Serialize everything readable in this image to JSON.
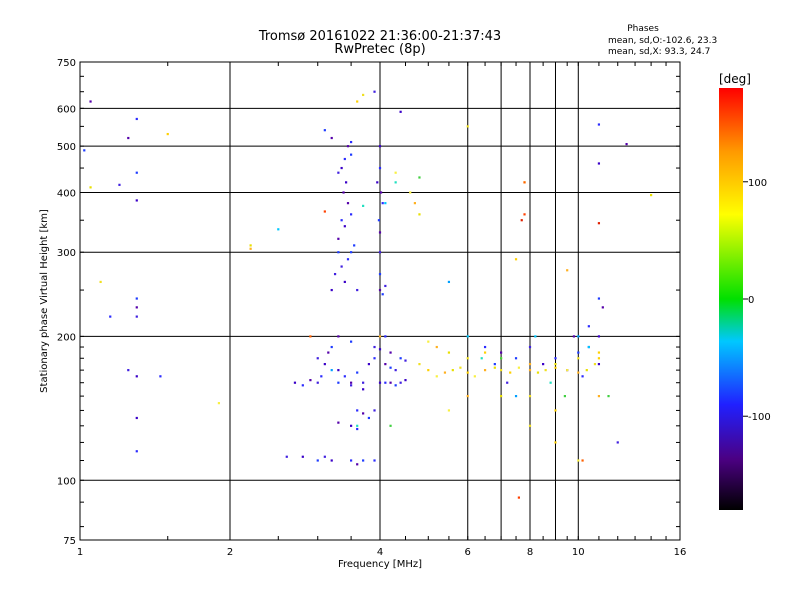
{
  "header": {
    "title_line1": "Tromsø 20161022 21:36:00-21:37:43",
    "title_line2": "RwPretec (8p)",
    "phases_title": "Phases",
    "phases_o": "mean, sd,O:-102.6, 23.3",
    "phases_x": "mean, sd,X:  93.3, 24.7"
  },
  "chart_data": {
    "type": "scatter",
    "xlabel": "Frequency [MHz]",
    "ylabel": "Stationary phase Virtual Height [km]",
    "xscale": "log",
    "yscale": "log",
    "xlim": [
      1,
      16
    ],
    "ylim": [
      75,
      750
    ],
    "xticks": [
      1,
      2,
      4,
      6,
      8,
      10,
      16
    ],
    "xtick_labels": [
      "1",
      "2",
      "4",
      "6",
      "8",
      "10",
      "16"
    ],
    "yticks": [
      75,
      100,
      200,
      300,
      400,
      500,
      600,
      750
    ],
    "ytick_labels": [
      "75",
      "100",
      "200",
      "300",
      "400",
      "500",
      "600",
      "750"
    ],
    "grid": true,
    "colorbar": {
      "label": "[deg]",
      "range": [
        -180,
        180
      ],
      "ticks": [
        100,
        0,
        -100
      ],
      "tick_labels": [
        "100",
        "0",
        "-100"
      ]
    },
    "series": [
      {
        "color_group": "O-mode (blue/purple, ~-100 deg)",
        "points": [
          [
            3.35,
            450
          ],
          [
            3.4,
            470
          ],
          [
            3.45,
            500
          ],
          [
            3.5,
            480
          ],
          [
            3.3,
            440
          ],
          [
            3.42,
            420
          ],
          [
            3.5,
            510
          ],
          [
            3.38,
            400
          ],
          [
            3.3,
            300
          ],
          [
            3.35,
            280
          ],
          [
            3.4,
            260
          ],
          [
            3.45,
            290
          ],
          [
            3.3,
            320
          ],
          [
            3.5,
            300
          ],
          [
            3.25,
            270
          ],
          [
            3.4,
            340
          ],
          [
            3.5,
            360
          ],
          [
            3.45,
            380
          ],
          [
            3.55,
            310
          ],
          [
            3.6,
            250
          ],
          [
            3.2,
            250
          ],
          [
            3.35,
            350
          ],
          [
            4.0,
            250
          ],
          [
            4.05,
            245
          ],
          [
            4.1,
            255
          ],
          [
            4.0,
            500
          ],
          [
            4.0,
            450
          ],
          [
            4.02,
            400
          ],
          [
            3.98,
            350
          ],
          [
            4.0,
            300
          ],
          [
            3.95,
            420
          ],
          [
            4.05,
            380
          ],
          [
            4.0,
            330
          ],
          [
            4.0,
            270
          ],
          [
            3.0,
            180
          ],
          [
            3.1,
            175
          ],
          [
            3.05,
            165
          ],
          [
            3.15,
            185
          ],
          [
            3.2,
            190
          ],
          [
            3.0,
            160
          ],
          [
            3.3,
            170
          ],
          [
            3.4,
            165
          ],
          [
            3.5,
            160
          ],
          [
            3.6,
            168
          ],
          [
            3.7,
            160
          ],
          [
            3.8,
            175
          ],
          [
            3.9,
            180
          ],
          [
            4.1,
            175
          ],
          [
            4.2,
            172
          ],
          [
            4.3,
            170
          ],
          [
            2.7,
            160
          ],
          [
            2.8,
            158
          ],
          [
            2.9,
            162
          ],
          [
            3.3,
            160
          ],
          [
            3.5,
            158
          ],
          [
            3.7,
            155
          ],
          [
            3.6,
            140
          ],
          [
            3.7,
            138
          ],
          [
            3.8,
            135
          ],
          [
            3.9,
            140
          ],
          [
            3.5,
            130
          ],
          [
            3.6,
            128
          ],
          [
            3.3,
            132
          ],
          [
            3.0,
            110
          ],
          [
            3.1,
            112
          ],
          [
            3.2,
            110
          ],
          [
            3.5,
            110
          ],
          [
            3.6,
            108
          ],
          [
            3.7,
            110
          ],
          [
            2.6,
            112
          ],
          [
            2.8,
            112
          ],
          [
            3.9,
            110
          ],
          [
            3.3,
            200
          ],
          [
            3.5,
            195
          ],
          [
            3.9,
            190
          ],
          [
            4.0,
            188
          ],
          [
            4.1,
            200
          ],
          [
            4.2,
            185
          ],
          [
            4.4,
            180
          ],
          [
            4.5,
            178
          ],
          [
            4.0,
            160
          ],
          [
            4.1,
            160
          ],
          [
            4.2,
            160
          ],
          [
            4.3,
            158
          ],
          [
            4.4,
            160
          ],
          [
            4.5,
            162
          ],
          [
            1.3,
            570
          ],
          [
            1.25,
            520
          ],
          [
            1.3,
            440
          ],
          [
            1.2,
            415
          ],
          [
            1.3,
            385
          ],
          [
            1.15,
            220
          ],
          [
            1.3,
            230
          ],
          [
            1.3,
            240
          ],
          [
            1.3,
            220
          ],
          [
            1.3,
            135
          ],
          [
            1.3,
            115
          ],
          [
            1.05,
            620
          ],
          [
            1.02,
            490
          ],
          [
            1.25,
            170
          ],
          [
            1.3,
            165
          ],
          [
            1.45,
            165
          ],
          [
            3.2,
            520
          ],
          [
            3.1,
            540
          ],
          [
            3.9,
            650
          ],
          [
            4.4,
            590
          ],
          [
            6.5,
            190
          ],
          [
            7.0,
            185
          ],
          [
            7.5,
            180
          ],
          [
            8.0,
            190
          ],
          [
            8.5,
            175
          ],
          [
            9.0,
            180
          ],
          [
            9.5,
            170
          ],
          [
            10.0,
            185
          ],
          [
            10.5,
            190
          ],
          [
            11.0,
            175
          ],
          [
            10.2,
            165
          ],
          [
            9.8,
            200
          ],
          [
            6.8,
            175
          ],
          [
            7.2,
            160
          ],
          [
            11.0,
            200
          ],
          [
            10.5,
            210
          ],
          [
            11.2,
            230
          ],
          [
            11.0,
            240
          ],
          [
            12.0,
            120
          ],
          [
            11.0,
            460
          ],
          [
            11.0,
            555
          ],
          [
            12.5,
            505
          ]
        ]
      },
      {
        "color_group": "X-mode (yellow/orange, ~+100 deg)",
        "points": [
          [
            4.8,
            175
          ],
          [
            5.0,
            170
          ],
          [
            5.2,
            165
          ],
          [
            5.4,
            168
          ],
          [
            5.6,
            170
          ],
          [
            5.8,
            172
          ],
          [
            6.0,
            168
          ],
          [
            6.2,
            165
          ],
          [
            6.5,
            170
          ],
          [
            6.8,
            172
          ],
          [
            7.0,
            170
          ],
          [
            7.3,
            168
          ],
          [
            7.6,
            172
          ],
          [
            8.0,
            170
          ],
          [
            8.3,
            168
          ],
          [
            8.6,
            170
          ],
          [
            9.0,
            172
          ],
          [
            9.5,
            170
          ],
          [
            10.0,
            168
          ],
          [
            10.4,
            170
          ],
          [
            10.8,
            175
          ],
          [
            11.0,
            180
          ],
          [
            5.0,
            195
          ],
          [
            5.2,
            190
          ],
          [
            5.5,
            185
          ],
          [
            6.0,
            180
          ],
          [
            6.5,
            185
          ],
          [
            7.0,
            180
          ],
          [
            8.0,
            175
          ],
          [
            9.0,
            175
          ],
          [
            10.0,
            180
          ],
          [
            11.0,
            185
          ],
          [
            5.5,
            140
          ],
          [
            6.0,
            150
          ],
          [
            7.0,
            150
          ],
          [
            8.0,
            150
          ],
          [
            9.0,
            140
          ],
          [
            4.6,
            400
          ],
          [
            4.7,
            380
          ],
          [
            4.8,
            360
          ],
          [
            6.0,
            550
          ],
          [
            7.5,
            290
          ],
          [
            7.8,
            420
          ],
          [
            9.5,
            275
          ],
          [
            14.0,
            395
          ],
          [
            3.7,
            640
          ],
          [
            3.6,
            620
          ],
          [
            4.3,
            440
          ],
          [
            4.0,
            200
          ],
          [
            1.05,
            410
          ],
          [
            1.1,
            260
          ],
          [
            1.5,
            530
          ],
          [
            1.9,
            145
          ],
          [
            2.2,
            305
          ],
          [
            2.2,
            310
          ],
          [
            8.0,
            130
          ],
          [
            9.0,
            120
          ],
          [
            10.0,
            110
          ],
          [
            11.0,
            150
          ]
        ]
      },
      {
        "color_group": "red/orange outliers",
        "points": [
          [
            7.6,
            92
          ],
          [
            7.8,
            420
          ],
          [
            7.7,
            350
          ],
          [
            7.8,
            360
          ],
          [
            10.2,
            110
          ],
          [
            11.0,
            345
          ],
          [
            3.1,
            365
          ],
          [
            2.9,
            200
          ]
        ]
      },
      {
        "color_group": "cyan/green",
        "points": [
          [
            4.1,
            380
          ],
          [
            4.3,
            420
          ],
          [
            4.8,
            430
          ],
          [
            5.5,
            260
          ],
          [
            6.0,
            200
          ],
          [
            6.4,
            180
          ],
          [
            7.0,
            180
          ],
          [
            7.5,
            150
          ],
          [
            8.2,
            200
          ],
          [
            8.8,
            160
          ],
          [
            9.4,
            150
          ],
          [
            10.0,
            200
          ],
          [
            10.5,
            190
          ],
          [
            3.6,
            130
          ],
          [
            4.2,
            130
          ],
          [
            3.2,
            170
          ],
          [
            2.5,
            335
          ],
          [
            3.7,
            375
          ],
          [
            11.5,
            150
          ]
        ]
      }
    ]
  }
}
